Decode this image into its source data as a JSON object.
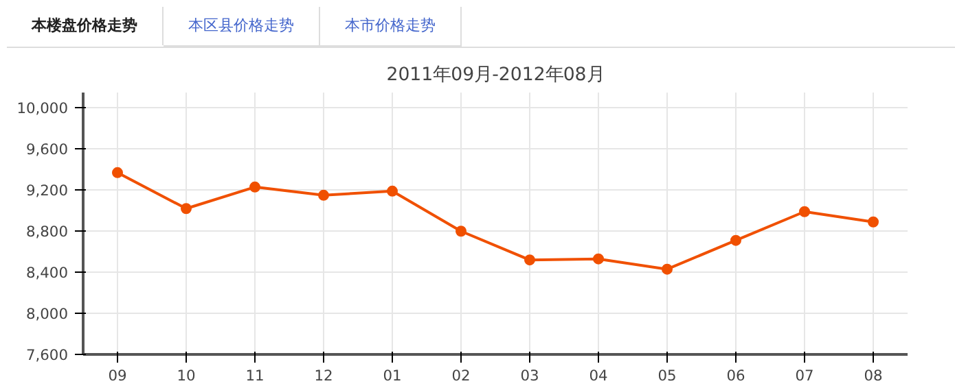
{
  "chart_data": {
    "type": "line",
    "title": "2011年09月-2012年08月",
    "annotations": [
      "本楼盘价格走势",
      "本区县价格走势",
      "本市价格走势"
    ],
    "categories": [
      "09",
      "10",
      "11",
      "12",
      "01",
      "02",
      "03",
      "04",
      "05",
      "06",
      "07",
      "08"
    ],
    "series": [
      {
        "color": "#f05000",
        "values": [
          9370,
          9020,
          9230,
          9150,
          9190,
          8800,
          8520,
          8530,
          8430,
          8710,
          8990,
          8890
        ]
      }
    ],
    "ylim": [
      7600,
      10150
    ],
    "yticks": [
      {
        "value": 7600,
        "label": "7,600"
      },
      {
        "value": 8000,
        "label": "8,000"
      },
      {
        "value": 8400,
        "label": "8,400"
      },
      {
        "value": 8800,
        "label": "8,800"
      },
      {
        "value": 9200,
        "label": "9,200"
      },
      {
        "value": 9600,
        "label": "9,600"
      },
      {
        "value": 10000,
        "label": "10,000"
      }
    ],
    "grid": true,
    "marker": "circle",
    "line_style": "solid"
  }
}
